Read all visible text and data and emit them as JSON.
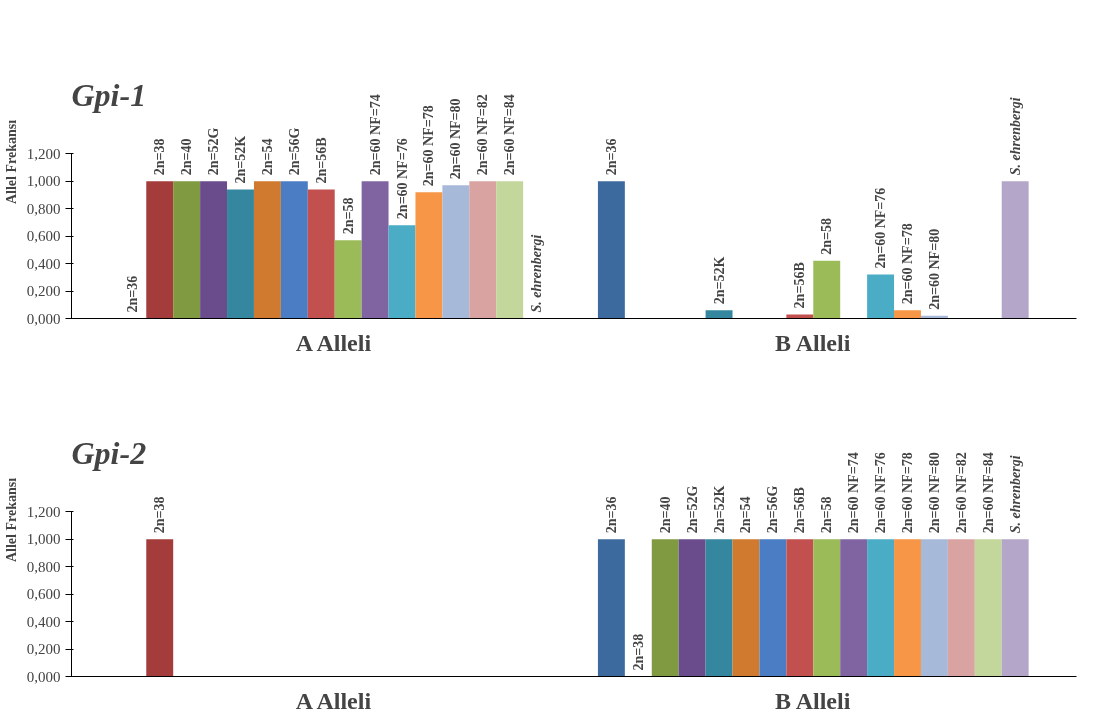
{
  "chart_data": [
    {
      "type": "bar",
      "title": "Gpi-1",
      "ylabel": "Allel Frekansı",
      "categories": [
        "A Alleli",
        "B Alleli"
      ],
      "ylim": [
        0,
        1.2
      ],
      "yticks": [
        {
          "value": 0,
          "label": "0,000"
        },
        {
          "value": 0.2,
          "label": "0,200"
        },
        {
          "value": 0.4,
          "label": "0,400"
        },
        {
          "value": 0.6,
          "label": "0,600"
        },
        {
          "value": 0.8,
          "label": "0,800"
        },
        {
          "value": 1.0,
          "label": "1,000"
        },
        {
          "value": 1.2,
          "label": "1,200"
        }
      ],
      "grid": false,
      "series": [
        {
          "name": "2n=36",
          "color": "#3d6a9e",
          "values": [
            0,
            1.0
          ]
        },
        {
          "name": "2n=38",
          "color": "#a33c3a",
          "values": [
            1.0,
            null
          ]
        },
        {
          "name": "2n=40",
          "color": "#7f9a40",
          "values": [
            1.0,
            null
          ]
        },
        {
          "name": "2n=52G",
          "color": "#6a4c8c",
          "values": [
            1.0,
            null
          ]
        },
        {
          "name": "2n=52K",
          "color": "#34879f",
          "values": [
            0.94,
            0.06
          ]
        },
        {
          "name": "2n=54",
          "color": "#d07a2f",
          "values": [
            1.0,
            null
          ]
        },
        {
          "name": "2n=56G",
          "color": "#4a7dc4",
          "values": [
            1.0,
            null
          ]
        },
        {
          "name": "2n=56B",
          "color": "#c2504e",
          "values": [
            0.94,
            0.03
          ]
        },
        {
          "name": "2n=58",
          "color": "#9bbb59",
          "values": [
            0.57,
            0.42
          ]
        },
        {
          "name": "2n=60 NF=74",
          "color": "#8064a2",
          "values": [
            1.0,
            null
          ]
        },
        {
          "name": "2n=60 NF=76",
          "color": "#4bacc6",
          "values": [
            0.68,
            0.32
          ]
        },
        {
          "name": "2n=60 NF=78",
          "color": "#f79646",
          "values": [
            0.92,
            0.06
          ]
        },
        {
          "name": "2n=60 NF=80",
          "color": "#a7b9d8",
          "values": [
            0.97,
            0.02
          ]
        },
        {
          "name": "2n=60 NF=82",
          "color": "#d9a3a2",
          "values": [
            1.0,
            null
          ]
        },
        {
          "name": "2n=60 NF=84",
          "color": "#c3d69b",
          "values": [
            1.0,
            null
          ]
        },
        {
          "name": "S. ehrenbergi",
          "color": "#b3a6c9",
          "values": [
            0,
            1.0
          ]
        }
      ]
    },
    {
      "type": "bar",
      "title": "Gpi-2",
      "ylabel": "Allel Frekansı",
      "categories": [
        "A Alleli",
        "B Alleli"
      ],
      "ylim": [
        0,
        1.2
      ],
      "yticks": [
        {
          "value": 0,
          "label": "0,000"
        },
        {
          "value": 0.2,
          "label": "0,200"
        },
        {
          "value": 0.4,
          "label": "0,400"
        },
        {
          "value": 0.6,
          "label": "0,600"
        },
        {
          "value": 0.8,
          "label": "0,800"
        },
        {
          "value": 1.0,
          "label": "1,000"
        },
        {
          "value": 1.2,
          "label": "1,200"
        }
      ],
      "grid": false,
      "series": [
        {
          "name": "2n=36",
          "color": "#3d6a9e",
          "values": [
            null,
            1.0
          ]
        },
        {
          "name": "2n=38",
          "color": "#a33c3a",
          "values": [
            1.0,
            0
          ]
        },
        {
          "name": "2n=40",
          "color": "#7f9a40",
          "values": [
            null,
            1.0
          ]
        },
        {
          "name": "2n=52G",
          "color": "#6a4c8c",
          "values": [
            null,
            1.0
          ]
        },
        {
          "name": "2n=52K",
          "color": "#34879f",
          "values": [
            null,
            1.0
          ]
        },
        {
          "name": "2n=54",
          "color": "#d07a2f",
          "values": [
            null,
            1.0
          ]
        },
        {
          "name": "2n=56G",
          "color": "#4a7dc4",
          "values": [
            null,
            1.0
          ]
        },
        {
          "name": "2n=56B",
          "color": "#c2504e",
          "values": [
            null,
            1.0
          ]
        },
        {
          "name": "2n=58",
          "color": "#9bbb59",
          "values": [
            null,
            1.0
          ]
        },
        {
          "name": "2n=60 NF=74",
          "color": "#8064a2",
          "values": [
            null,
            1.0
          ]
        },
        {
          "name": "2n=60 NF=76",
          "color": "#4bacc6",
          "values": [
            null,
            1.0
          ]
        },
        {
          "name": "2n=60 NF=78",
          "color": "#f79646",
          "values": [
            null,
            1.0
          ]
        },
        {
          "name": "2n=60 NF=80",
          "color": "#a7b9d8",
          "values": [
            null,
            1.0
          ]
        },
        {
          "name": "2n=60 NF=82",
          "color": "#d9a3a2",
          "values": [
            null,
            1.0
          ]
        },
        {
          "name": "2n=60 NF=84",
          "color": "#c3d69b",
          "values": [
            null,
            1.0
          ]
        },
        {
          "name": "S. ehrenbergi",
          "color": "#b3a6c9",
          "values": [
            null,
            1.0
          ]
        }
      ]
    }
  ]
}
